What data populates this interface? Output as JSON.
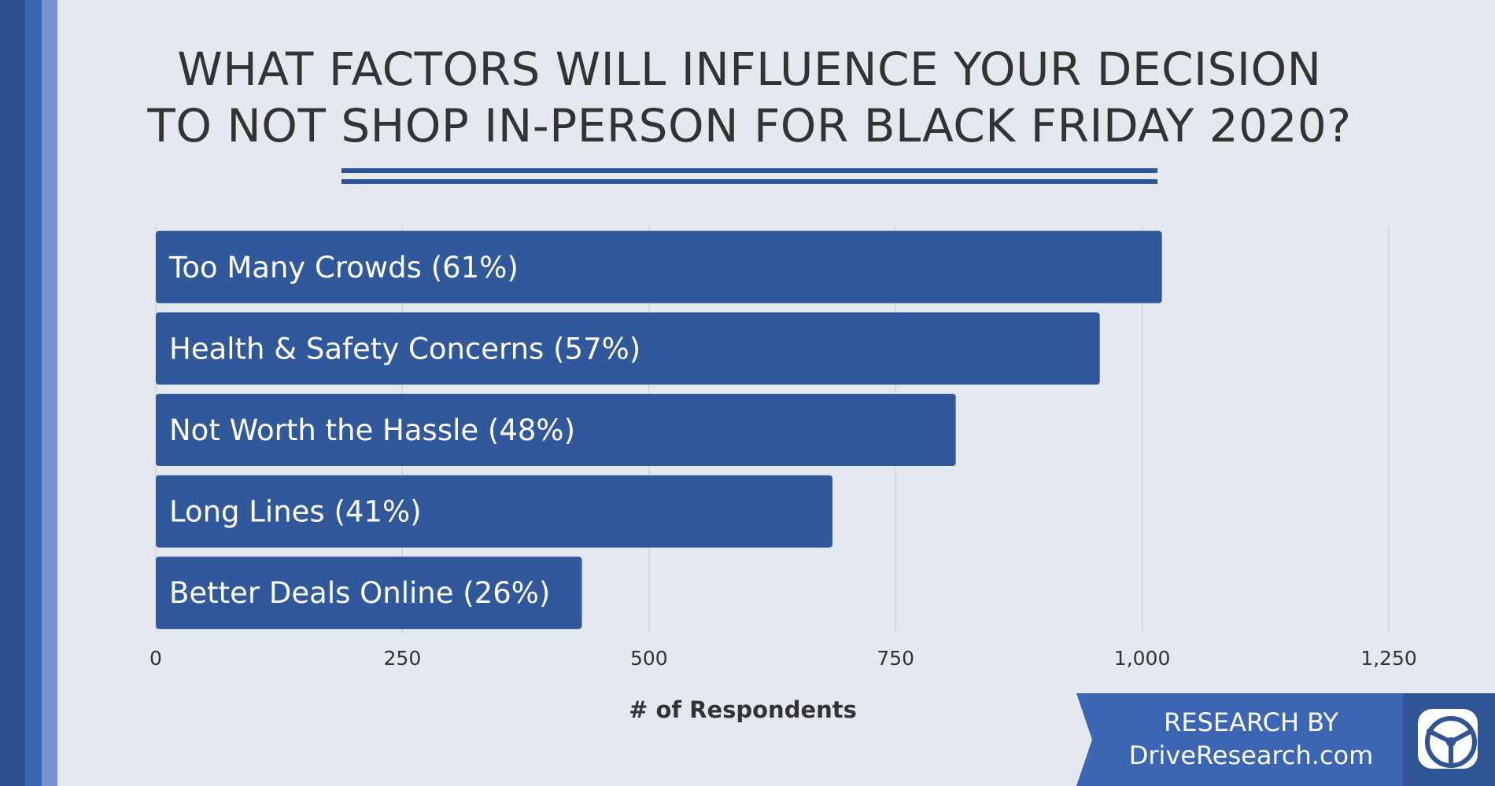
{
  "title_lines": [
    "WHAT FACTORS WILL INFLUENCE YOUR DECISION",
    "TO NOT SHOP IN-PERSON FOR BLACK FRIDAY 2020?"
  ],
  "chart_data": {
    "type": "bar",
    "orientation": "horizontal",
    "categories": [
      "Too Many Crowds (61%)",
      "Health & Safety Concerns (57%)",
      "Not Worth the Hassle (48%)",
      "Long Lines (41%)",
      "Better Deals Online (26%)"
    ],
    "values": [
      1020,
      957,
      811,
      686,
      432
    ],
    "xlabel": "# of Respondents",
    "xlim": [
      0,
      1250
    ],
    "xticks": [
      0,
      250,
      500,
      750,
      1000,
      1250
    ],
    "xtick_labels": [
      "0",
      "250",
      "500",
      "750",
      "1,000",
      "1,250"
    ],
    "grid": "vertical",
    "bar_color": "#31589a"
  },
  "badge": {
    "line1": "RESEARCH BY",
    "line2": "DriveResearch.com",
    "logo_icon": "steering-wheel-icon",
    "color": "#3c66b3"
  },
  "colors": {
    "background": "#e3e9ee",
    "accent": "#2f5596"
  }
}
